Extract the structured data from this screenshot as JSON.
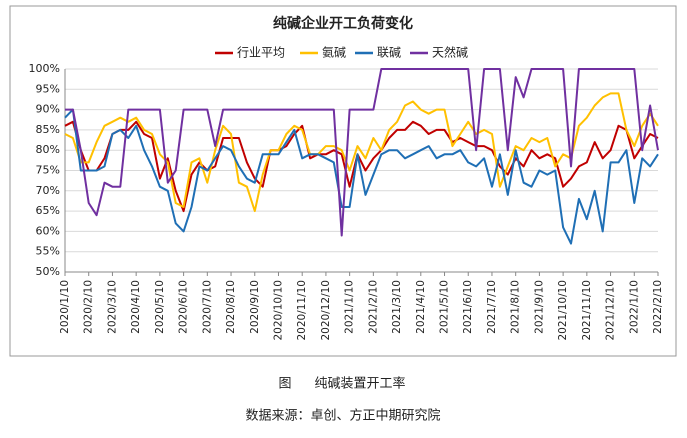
{
  "chart_data": {
    "type": "line",
    "title": "纯碱企业开工负荷变化",
    "categories": [
      "2020/1/10",
      null,
      null,
      "2020/2/10",
      null,
      null,
      "2020/3/10",
      null,
      null,
      "2020/4/10",
      null,
      null,
      "2020/5/10",
      null,
      null,
      "2020/6/10",
      null,
      null,
      "2020/7/10",
      null,
      null,
      "2020/8/10",
      null,
      null,
      "2020/9/10",
      null,
      null,
      "2020/10/10",
      null,
      null,
      "2020/11/10",
      null,
      null,
      "2020/12/10",
      null,
      null,
      "2021/1/10",
      null,
      null,
      "2021/2/10",
      null,
      null,
      "2021/3/10",
      null,
      null,
      "2021/4/10",
      null,
      null,
      "2021/5/10",
      null,
      null,
      "2021/6/10",
      null,
      null,
      "2021/7/10",
      null,
      null,
      "2021/8/10",
      null,
      null,
      "2021/9/10",
      null,
      null,
      "2021/10/10",
      null,
      null,
      "2021/11/10",
      null,
      null,
      "2021/12/10",
      null,
      null,
      "2022/1/10",
      null,
      null,
      "2022/2/10"
    ],
    "series": [
      {
        "name": "行业平均",
        "color": "#c00000",
        "values": [
          86,
          87,
          80,
          75,
          75,
          78,
          84,
          85,
          85,
          87,
          84,
          83,
          73,
          78,
          70,
          65,
          74,
          77,
          75,
          76,
          83,
          83,
          83,
          77,
          73,
          71,
          80,
          80,
          81,
          84,
          86,
          78,
          79,
          79,
          80,
          79,
          71,
          79,
          75,
          78,
          80,
          83,
          85,
          85,
          87,
          86,
          84,
          85,
          85,
          82,
          83,
          82,
          81,
          81,
          80,
          76,
          74,
          78,
          76,
          80,
          78,
          79,
          78,
          71,
          73,
          76,
          77,
          82,
          78,
          80,
          86,
          85,
          78,
          81,
          84,
          83
        ]
      },
      {
        "name": "氨碱",
        "color": "#ffc000",
        "values": [
          84,
          83,
          77,
          77,
          82,
          86,
          87,
          88,
          87,
          88,
          85,
          84,
          79,
          77,
          67,
          66,
          77,
          78,
          72,
          80,
          86,
          84,
          72,
          71,
          65,
          74,
          80,
          80,
          84,
          86,
          85,
          79,
          79,
          81,
          81,
          80,
          75,
          81,
          78,
          83,
          80,
          85,
          87,
          91,
          92,
          90,
          89,
          90,
          90,
          81,
          84,
          87,
          84,
          85,
          84,
          71,
          76,
          81,
          80,
          83,
          82,
          83,
          76,
          79,
          78,
          86,
          88,
          91,
          93,
          94,
          94,
          85,
          81,
          86,
          89,
          86
        ]
      },
      {
        "name": "联碱",
        "color": "#1f6fb5",
        "values": [
          88,
          90,
          75,
          75,
          75,
          76,
          84,
          85,
          83,
          86,
          80,
          76,
          71,
          70,
          62,
          60,
          66,
          76,
          75,
          78,
          81,
          80,
          76,
          73,
          72,
          79,
          79,
          79,
          82,
          85,
          78,
          79,
          79,
          78,
          77,
          66,
          66,
          79,
          69,
          74,
          79,
          80,
          80,
          78,
          79,
          80,
          81,
          78,
          79,
          79,
          80,
          77,
          76,
          78,
          71,
          79,
          69,
          80,
          72,
          71,
          75,
          74,
          75,
          61,
          57,
          68,
          63,
          70,
          60,
          77,
          77,
          80,
          67,
          78,
          76,
          79
        ]
      },
      {
        "name": "天然碱",
        "color": "#7030a0",
        "values": [
          90,
          90,
          80,
          67,
          64,
          72,
          71,
          71,
          90,
          90,
          90,
          90,
          90,
          72,
          75,
          90,
          90,
          90,
          90,
          81,
          90,
          90,
          90,
          90,
          90,
          90,
          90,
          90,
          90,
          90,
          90,
          90,
          90,
          90,
          90,
          59,
          90,
          90,
          90,
          90,
          100,
          100,
          100,
          100,
          100,
          100,
          100,
          100,
          100,
          100,
          100,
          100,
          80,
          100,
          100,
          100,
          80,
          98,
          93,
          100,
          100,
          100,
          100,
          100,
          76,
          100,
          100,
          100,
          100,
          100,
          100,
          100,
          100,
          80,
          91,
          80
        ]
      }
    ],
    "ylim": [
      50,
      100
    ],
    "yticks": [
      {
        "value": 50,
        "label": "50%"
      },
      {
        "value": 55,
        "label": "55%"
      },
      {
        "value": 60,
        "label": "60%"
      },
      {
        "value": 65,
        "label": "65%"
      },
      {
        "value": 70,
        "label": "70%"
      },
      {
        "value": 75,
        "label": "75%"
      },
      {
        "value": 80,
        "label": "80%"
      },
      {
        "value": 85,
        "label": "85%"
      },
      {
        "value": 90,
        "label": "90%"
      },
      {
        "value": 95,
        "label": "95%"
      },
      {
        "value": 100,
        "label": "100%"
      }
    ],
    "grid": true
  },
  "caption": {
    "figure": "图",
    "title": "纯碱装置开工率",
    "source": "数据来源：卓创、方正中期研究院"
  }
}
